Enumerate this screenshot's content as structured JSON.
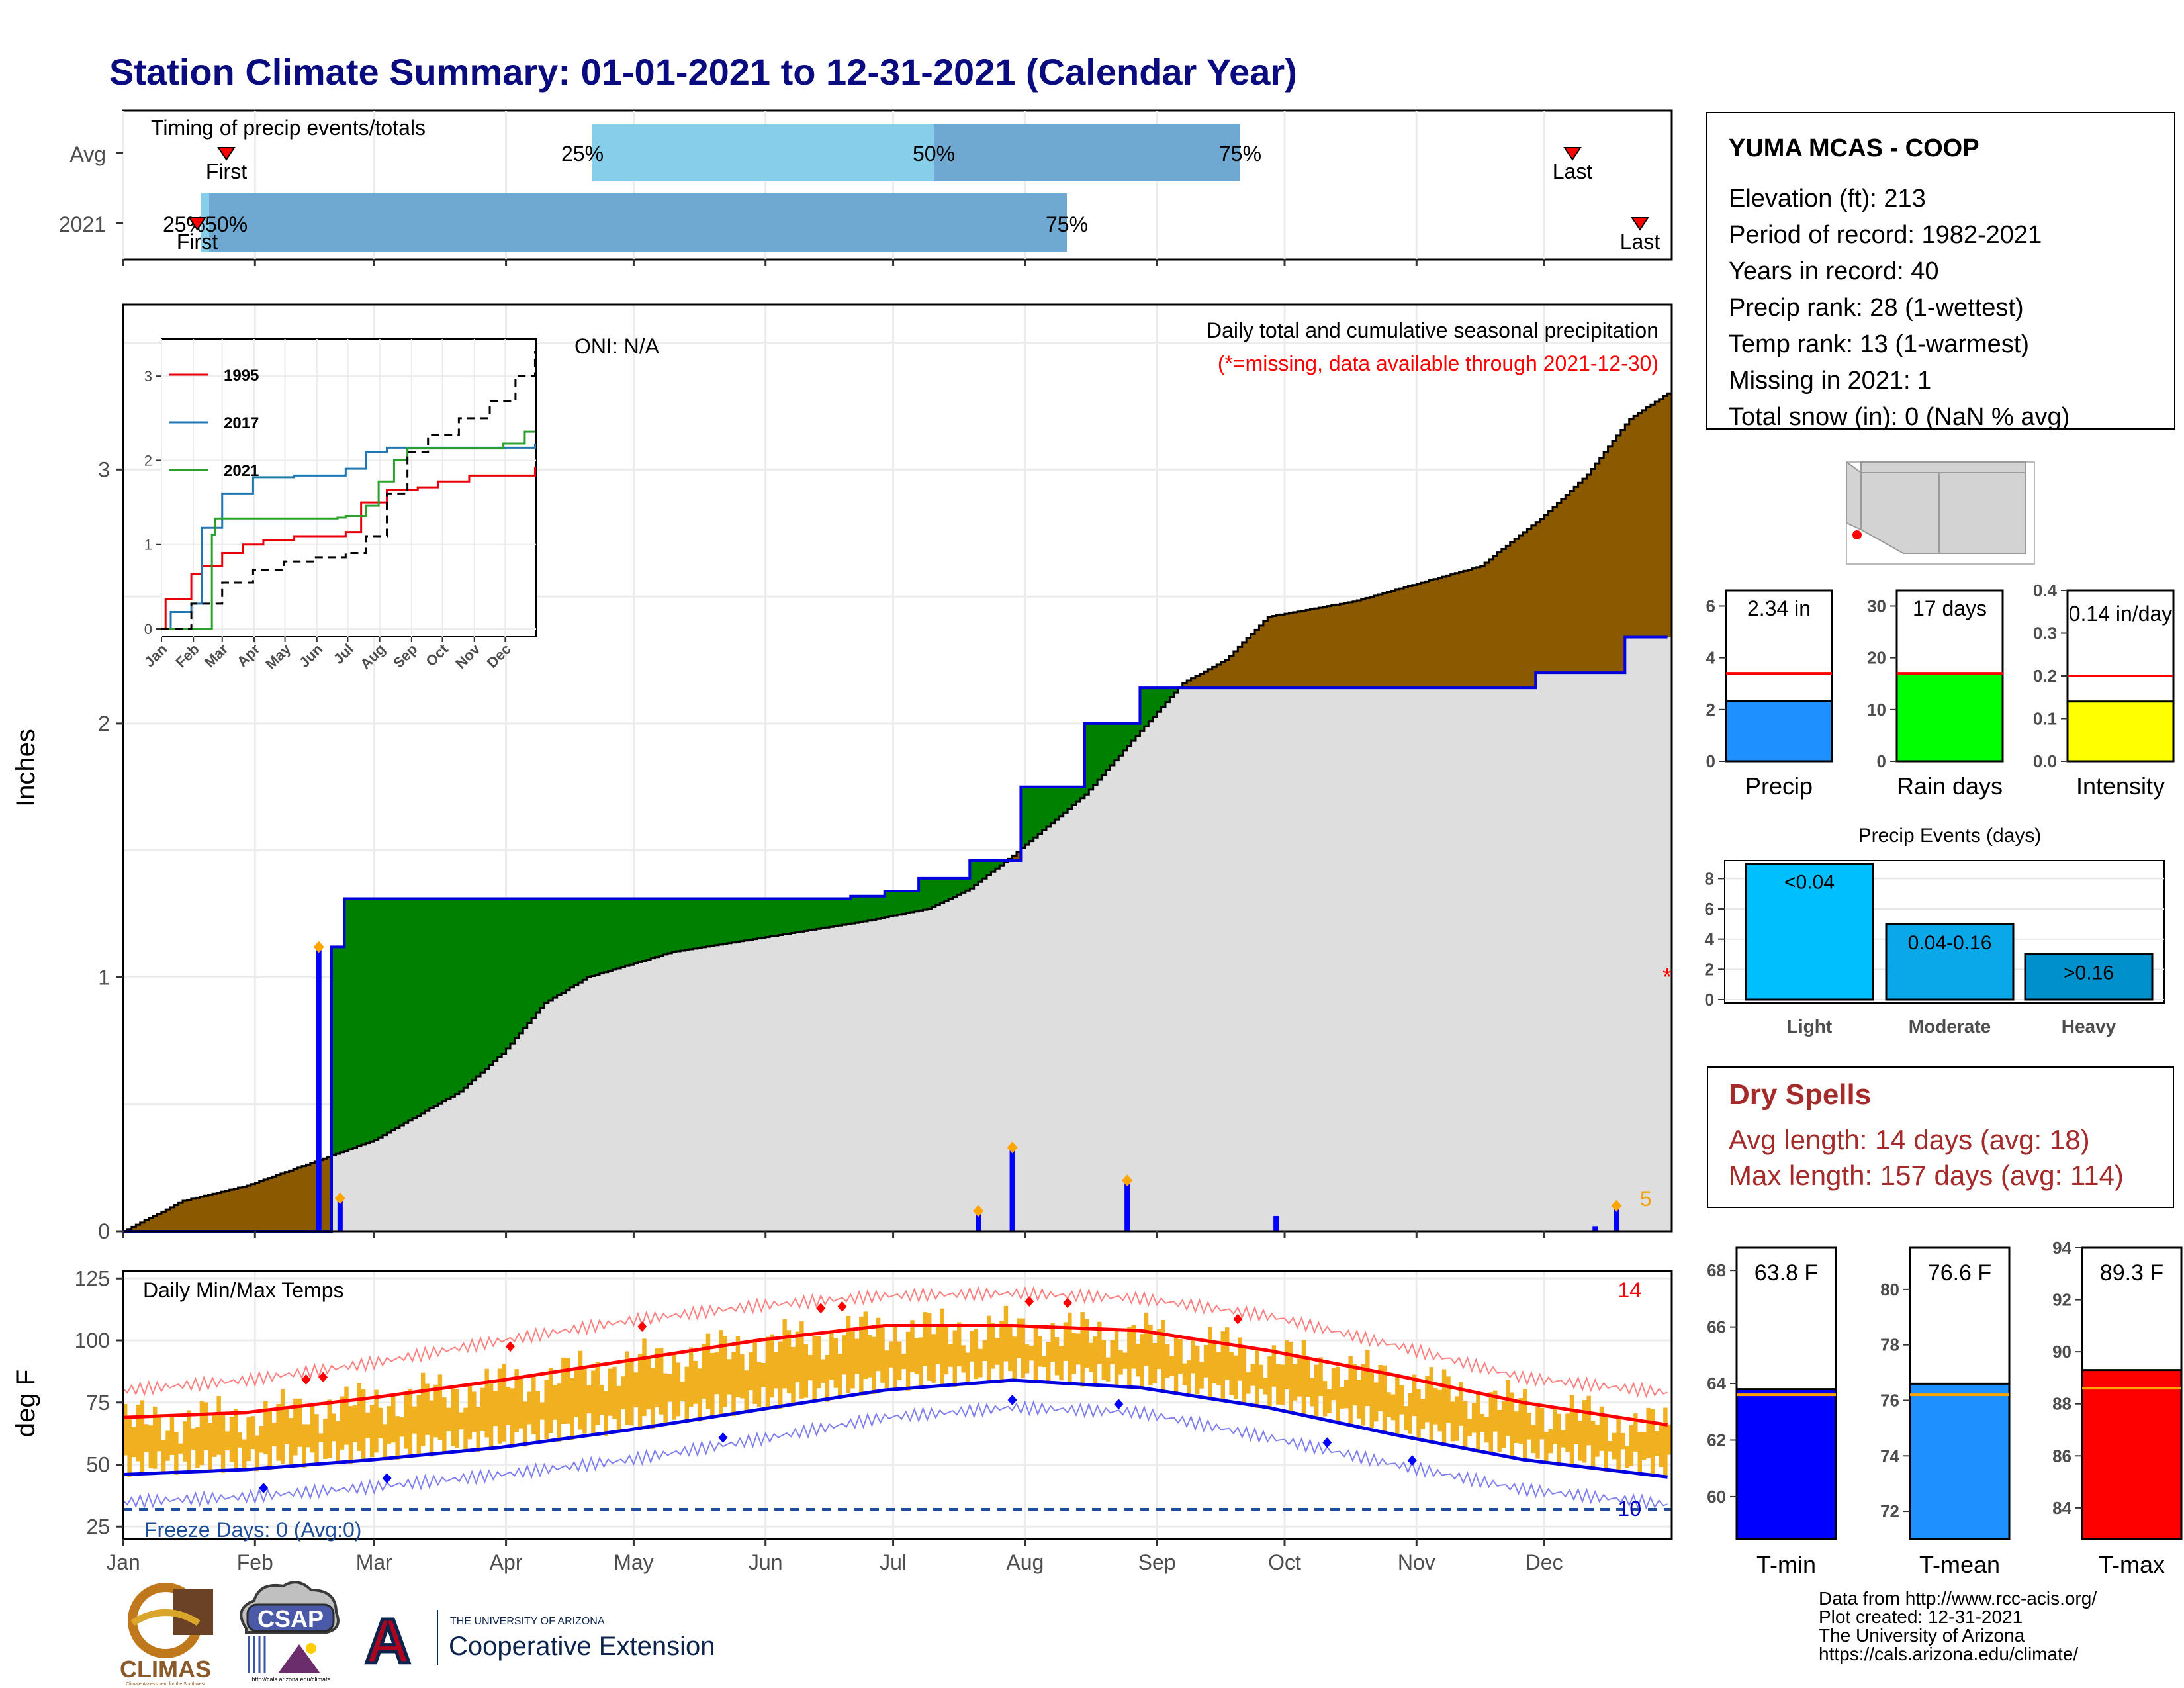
{
  "title": "Station Climate Summary: 01-01-2021 to 12-31-2021 (Calendar Year)",
  "colors": {
    "title": "#0b0b80",
    "brown": "#8b5a00",
    "green": "#008000",
    "grey_fill": "#dedede",
    "blue_line": "#0000e0",
    "orange": "#f0b020",
    "red": "#ff0000",
    "light_blue": "#87ceeb",
    "mid_blue": "#6fa8d0",
    "dry_spell_red": "#a52a2a"
  },
  "timing": {
    "label": "Timing of precip events/totals",
    "rows": [
      "Avg",
      "2021"
    ],
    "avg": {
      "first_label": "First",
      "last_label": "Last",
      "p25": "25%",
      "p50": "50%",
      "p75": "75%"
    },
    "y2021": {
      "first_label": "First",
      "last_label": "Last",
      "p25p50": "25%50%",
      "p75": "75%"
    }
  },
  "main_panel": {
    "ylabel": "Inches",
    "oni": "ONI: N/A",
    "subtitle": "Daily total and cumulative seasonal precipitation",
    "missing_note": "(*=missing, data available through 2021-12-30)",
    "end_label": "5",
    "yticks": [
      "0",
      "1",
      "2",
      "3"
    ],
    "missing_marker": "*"
  },
  "inset": {
    "legend": [
      "1995",
      "2017",
      "2021"
    ],
    "yticks": [
      "0",
      "1",
      "2",
      "3"
    ],
    "months": [
      "Jan",
      "Feb",
      "Mar",
      "Apr",
      "May",
      "Jun",
      "Jul",
      "Aug",
      "Sep",
      "Oct",
      "Nov",
      "Dec"
    ]
  },
  "temp_panel": {
    "label": "Daily Min/Max Temps",
    "ylabel": "deg F",
    "yticks": [
      "25",
      "50",
      "75",
      "100",
      "125"
    ],
    "freeze": "Freeze Days: 0 (Avg:0)",
    "count_hot": "14",
    "count_cold": "10"
  },
  "months": [
    "Jan",
    "Feb",
    "Mar",
    "Apr",
    "May",
    "Jun",
    "Jul",
    "Aug",
    "Sep",
    "Oct",
    "Nov",
    "Dec"
  ],
  "station": {
    "name": "YUMA MCAS - COOP",
    "lines": [
      "Elevation (ft): 213",
      "Period of record: 1982-2021",
      "Years in record: 40",
      "Precip rank: 28 (1-wettest)",
      "Temp rank: 13 (1-warmest)",
      "Missing in 2021: 1",
      "Total snow (in): 0 (NaN % avg)"
    ]
  },
  "mini_bars": [
    {
      "label": "Precip",
      "value_label": "2.34 in",
      "value": 2.34,
      "avg": 3.4,
      "ymax": 6.6,
      "ticks": [
        "0",
        "2",
        "4",
        "6"
      ],
      "tick_vals": [
        0,
        2,
        4,
        6
      ],
      "color": "#1e90ff"
    },
    {
      "label": "Rain days",
      "value_label": "17 days",
      "value": 17,
      "avg": 17,
      "ymax": 33,
      "ticks": [
        "0",
        "10",
        "20",
        "30"
      ],
      "tick_vals": [
        0,
        10,
        20,
        30
      ],
      "color": "#00ff00"
    },
    {
      "label": "Intensity",
      "value_label": "0.14 in/day",
      "value": 0.14,
      "avg": 0.2,
      "ymax": 0.4,
      "ticks": [
        "0.0",
        "0.1",
        "0.2",
        "0.3",
        "0.4"
      ],
      "tick_vals": [
        0,
        0.1,
        0.2,
        0.3,
        0.4
      ],
      "color": "#ffff00"
    }
  ],
  "precip_events": {
    "title": "Precip Events (days)",
    "categories": [
      "Light",
      "Moderate",
      "Heavy"
    ],
    "bar_labels": [
      "<0.04",
      "0.04-0.16",
      ">0.16"
    ],
    "values": [
      9,
      5,
      3
    ],
    "colors": [
      "#00bfff",
      "#0aa8e8",
      "#0090cc"
    ],
    "yticks": [
      "0",
      "2",
      "4",
      "6",
      "8"
    ]
  },
  "dry_spells": {
    "title": "Dry Spells",
    "avg": "Avg length: 14 days (avg: 18)",
    "max": "Max length: 157 days (avg: 114)"
  },
  "temp_bars": [
    {
      "label": "T-min",
      "value_label": "63.8 F",
      "value": 63.8,
      "avg": 63.6,
      "ymin": 58.5,
      "ymax": 68.8,
      "ticks": [
        "60",
        "62",
        "64",
        "66",
        "68"
      ],
      "tick_vals": [
        60,
        62,
        64,
        66,
        68
      ],
      "color": "#0000ff"
    },
    {
      "label": "T-mean",
      "value_label": "76.6 F",
      "value": 76.6,
      "avg": 76.2,
      "ymin": 71.0,
      "ymax": 81.5,
      "ticks": [
        "72",
        "74",
        "76",
        "78",
        "80"
      ],
      "tick_vals": [
        72,
        74,
        76,
        78,
        80
      ],
      "color": "#1e90ff"
    },
    {
      "label": "T-max",
      "value_label": "89.3 F",
      "value": 89.3,
      "avg": 88.6,
      "ymin": 82.8,
      "ymax": 94.0,
      "ticks": [
        "84",
        "86",
        "88",
        "90",
        "92",
        "94"
      ],
      "tick_vals": [
        84,
        86,
        88,
        90,
        92,
        94
      ],
      "color": "#ff0000"
    }
  ],
  "logos": {
    "climas": "CLIMAS",
    "climas_sub": "Climate Assessment for the Southwest",
    "csap": "CSAP",
    "csap_url": "http://cals.arizona.edu/climate",
    "ua_small": "THE UNIVERSITY OF ARIZONA",
    "ua_big": "Cooperative Extension",
    "ua_letter": "A"
  },
  "credits": [
    "Data from http://www.rcc-acis.org/",
    "Plot created: 12-31-2021",
    "The University of Arizona",
    "https://cals.arizona.edu/climate/"
  ],
  "chart_data": [
    {
      "type": "area",
      "title": "Daily total and cumulative seasonal precipitation",
      "ylabel": "Inches",
      "x_unit": "day of year",
      "ylim": [
        0,
        3.65
      ],
      "series": [
        {
          "name": "2021",
          "x": [
            1,
            47,
            50,
            53,
            172,
            180,
            188,
            200,
            212,
            216,
            227,
            240,
            274,
            333,
            354,
            364
          ],
          "y": [
            0.0,
            0.0,
            1.12,
            1.31,
            1.32,
            1.34,
            1.39,
            1.46,
            1.75,
            1.75,
            2.0,
            2.14,
            2.14,
            2.2,
            2.34,
            2.34
          ]
        },
        {
          "x": [
            1,
            15,
            30,
            47,
            60,
            80,
            90,
            100,
            110,
            130,
            160,
            175,
            190,
            200,
            210,
            227,
            240,
            250,
            260,
            270,
            290,
            320,
            335,
            345,
            355,
            364
          ],
          "y": [
            0.0,
            0.12,
            0.18,
            0.28,
            0.36,
            0.55,
            0.7,
            0.9,
            1.0,
            1.1,
            1.18,
            1.22,
            1.27,
            1.35,
            1.48,
            1.72,
            1.97,
            2.16,
            2.25,
            2.42,
            2.48,
            2.62,
            2.82,
            2.98,
            3.2,
            3.3
          ]
        }
      ]
    },
    {
      "type": "bar",
      "title": "",
      "x_unit": "day of year",
      "ylabel": "Inches",
      "x": [
        47,
        52,
        202,
        210,
        237,
        272,
        347,
        352
      ],
      "values": [
        1.12,
        0.13,
        0.08,
        0.33,
        0.2,
        0.06,
        0.02,
        0.1
      ]
    },
    {
      "type": "line",
      "title": "",
      "x_unit": "day of year",
      "ylabel": "Inches",
      "ylim": [
        0,
        3.3
      ],
      "series": [
        {
          "name": "1995",
          "x": [
            1,
            5,
            20,
            30,
            40,
            60,
            80,
            100,
            130,
            180,
            195,
            220,
            250,
            270,
            300,
            364
          ],
          "y": [
            0.0,
            0.35,
            0.35,
            0.65,
            0.75,
            0.9,
            1.0,
            1.05,
            1.1,
            1.15,
            1.5,
            1.65,
            1.68,
            1.75,
            1.82,
            1.92
          ]
        },
        {
          "name": "2017",
          "x": [
            1,
            10,
            20,
            30,
            40,
            60,
            90,
            130,
            180,
            200,
            220,
            364
          ],
          "y": [
            0.0,
            0.2,
            0.2,
            0.3,
            1.2,
            1.6,
            1.8,
            1.82,
            1.9,
            2.1,
            2.15,
            2.2
          ]
        },
        {
          "name": "2021",
          "x": [
            1,
            47,
            50,
            53,
            172,
            180,
            200,
            212,
            227,
            240,
            274,
            333,
            354,
            364
          ],
          "y": [
            0.0,
            0.0,
            1.12,
            1.31,
            1.32,
            1.34,
            1.46,
            1.75,
            2.0,
            2.14,
            2.14,
            2.2,
            2.34,
            2.34
          ]
        },
        {
          "x": [
            1,
            30,
            60,
            90,
            120,
            150,
            180,
            200,
            220,
            240,
            260,
            290,
            320,
            345,
            364
          ],
          "y": [
            0.0,
            0.3,
            0.55,
            0.7,
            0.8,
            0.85,
            0.9,
            1.1,
            1.6,
            2.1,
            2.3,
            2.5,
            2.7,
            3.0,
            3.3
          ]
        }
      ]
    },
    {
      "type": "line",
      "title": "Daily Min/Max Temps",
      "ylabel": "deg F",
      "x_unit": "day of year",
      "ylim": [
        20,
        128
      ],
      "series": [
        {
          "x": [
            1,
            30,
            60,
            90,
            120,
            150,
            180,
            210,
            240,
            270,
            300,
            330,
            364
          ],
          "y": [
            69,
            71,
            77,
            84,
            92,
            100,
            106,
            106,
            104,
            96,
            86,
            75,
            66
          ]
        },
        {
          "x": [
            1,
            30,
            60,
            90,
            120,
            150,
            180,
            210,
            240,
            270,
            300,
            330,
            364
          ],
          "y": [
            46,
            48,
            52,
            57,
            64,
            72,
            80,
            84,
            81,
            73,
            62,
            52,
            45
          ]
        },
        {
          "x": [
            1,
            30,
            60,
            90,
            120,
            150,
            180,
            210,
            240,
            270,
            300,
            330,
            364
          ],
          "y": [
            80,
            84,
            91,
            100,
            108,
            114,
            118,
            119,
            117,
            110,
            98,
            85,
            79
          ]
        },
        {
          "x": [
            1,
            30,
            60,
            90,
            120,
            150,
            180,
            210,
            240,
            270,
            300,
            330,
            364
          ],
          "y": [
            35,
            37,
            41,
            46,
            52,
            60,
            69,
            73,
            71,
            61,
            50,
            40,
            34
          ]
        }
      ],
      "freeze_threshold": 32
    }
  ]
}
